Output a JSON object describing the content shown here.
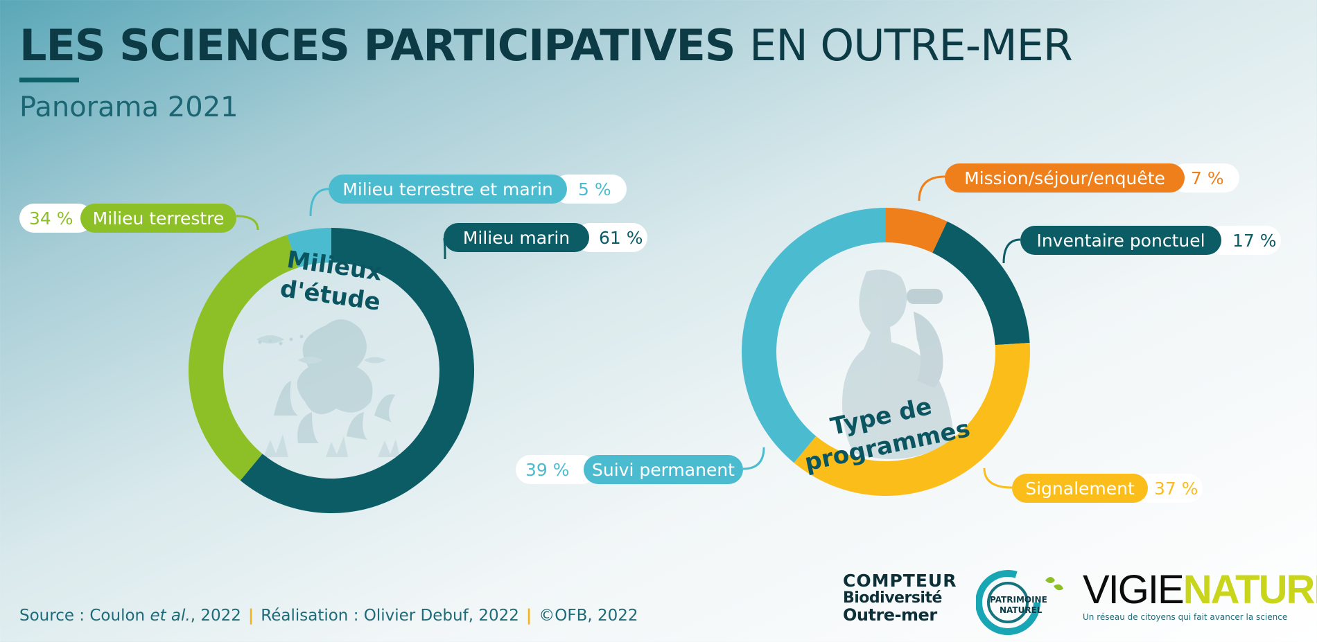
{
  "header": {
    "title_bold": "LES SCIENCES PARTICIPATIVES",
    "title_light": "EN OUTRE-MER",
    "subtitle": "Panorama 2021"
  },
  "chart_data": [
    {
      "type": "pie",
      "center_label": [
        "Milieux",
        "d'étude"
      ],
      "slices": [
        {
          "label": "Milieu marin",
          "value": 61,
          "pct_text": "61 %",
          "color": "#0b5c65"
        },
        {
          "label": "Milieu terrestre",
          "value": 34,
          "pct_text": "34 %",
          "color": "#8dc026"
        },
        {
          "label": "Milieu terrestre et marin",
          "value": 5,
          "pct_text": "5 %",
          "color": "#4bbccf"
        }
      ]
    },
    {
      "type": "pie",
      "center_label": [
        "Type de",
        "programmes"
      ],
      "slices": [
        {
          "label": "Mission/séjour/enquête",
          "value": 7,
          "pct_text": "7 %",
          "color": "#ef7f1a"
        },
        {
          "label": "Inventaire ponctuel",
          "value": 17,
          "pct_text": "17 %",
          "color": "#0b5c65"
        },
        {
          "label": "Signalement",
          "value": 37,
          "pct_text": "37 %",
          "color": "#fbbd19"
        },
        {
          "label": "Suivi permanent",
          "value": 39,
          "pct_text": "39 %",
          "color": "#4bbccf"
        }
      ]
    }
  ],
  "footer": {
    "source_prefix": "Source : Coulon ",
    "source_italic": "et al.",
    "source_suffix": ", 2022",
    "realisation": "Réalisation : Olivier Debuf, 2022",
    "copyright": "©OFB, 2022",
    "separator": "|"
  },
  "logos": {
    "compteur": [
      "COMPTEUR",
      "Biodiversité",
      "Outre-mer"
    ],
    "patrimoine": "PATRIMOINE NATUREL",
    "vigie": "VIGIE",
    "nature": "NATURE",
    "vigie_tagline": "Un réseau de citoyens qui fait avancer la science"
  }
}
